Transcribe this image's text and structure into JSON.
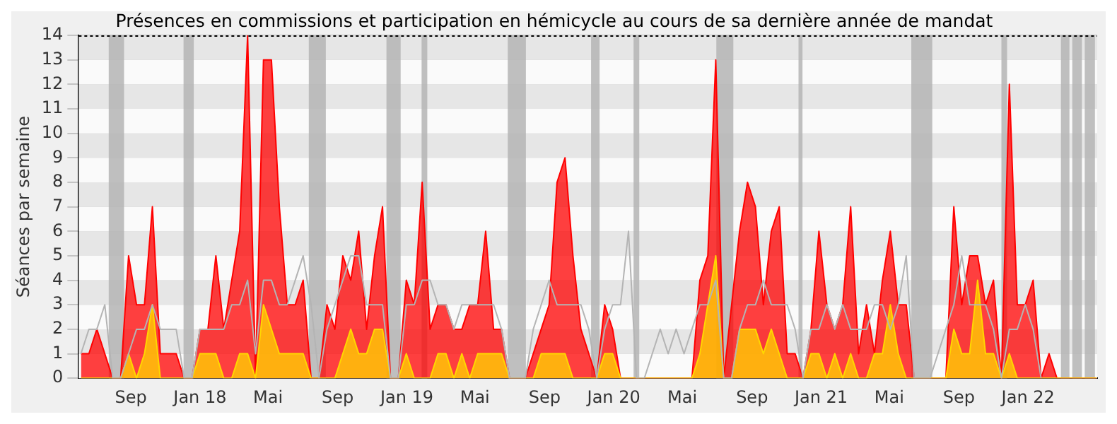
{
  "chart_data": {
    "type": "area",
    "title": "Présences en commissions et participation en hémicycle au cours de sa dernière année de mandat",
    "ylabel": "Séances par semaine",
    "x": [
      "2017-06-05",
      "2017-06-19",
      "2017-07-03",
      "2017-07-17",
      "2017-07-31",
      "2017-08-14",
      "2017-08-28",
      "2017-09-11",
      "2017-09-25",
      "2017-10-09",
      "2017-10-23",
      "2017-11-06",
      "2017-11-20",
      "2017-12-04",
      "2017-12-18",
      "2018-01-01",
      "2018-01-15",
      "2018-01-29",
      "2018-02-12",
      "2018-02-26",
      "2018-03-12",
      "2018-03-26",
      "2018-04-09",
      "2018-04-23",
      "2018-05-07",
      "2018-05-21",
      "2018-06-04",
      "2018-06-18",
      "2018-07-02",
      "2018-07-16",
      "2018-07-30",
      "2018-08-13",
      "2018-08-27",
      "2018-09-10",
      "2018-09-24",
      "2018-10-08",
      "2018-10-22",
      "2018-11-05",
      "2018-11-19",
      "2018-12-03",
      "2018-12-17",
      "2018-12-31",
      "2019-01-14",
      "2019-01-28",
      "2019-02-11",
      "2019-02-25",
      "2019-03-11",
      "2019-03-25",
      "2019-04-08",
      "2019-04-22",
      "2019-05-06",
      "2019-05-20",
      "2019-06-03",
      "2019-06-17",
      "2019-07-01",
      "2019-07-15",
      "2019-07-29",
      "2019-08-12",
      "2019-08-26",
      "2019-09-09",
      "2019-09-23",
      "2019-10-07",
      "2019-10-21",
      "2019-11-04",
      "2019-11-18",
      "2019-12-02",
      "2019-12-16",
      "2019-12-30",
      "2020-01-13",
      "2020-01-27",
      "2020-02-10",
      "2020-02-24",
      "2020-03-09",
      "2020-03-23",
      "2020-04-06",
      "2020-04-20",
      "2020-05-04",
      "2020-05-18",
      "2020-06-01",
      "2020-06-15",
      "2020-06-29",
      "2020-07-13",
      "2020-07-27",
      "2020-08-10",
      "2020-08-24",
      "2020-09-07",
      "2020-09-21",
      "2020-10-05",
      "2020-10-19",
      "2020-11-02",
      "2020-11-16",
      "2020-11-30",
      "2020-12-14",
      "2020-12-28",
      "2021-01-11",
      "2021-01-25",
      "2021-02-08",
      "2021-02-22",
      "2021-03-08",
      "2021-03-22",
      "2021-04-05",
      "2021-04-19",
      "2021-05-03",
      "2021-05-17",
      "2021-05-31",
      "2021-06-14",
      "2021-06-28",
      "2021-07-12",
      "2021-07-26",
      "2021-08-09",
      "2021-08-23",
      "2021-09-06",
      "2021-09-20",
      "2021-10-04",
      "2021-10-18",
      "2021-11-01",
      "2021-11-15",
      "2021-11-29",
      "2021-12-13",
      "2021-12-27",
      "2022-01-10",
      "2022-01-24",
      "2022-02-07",
      "2022-02-21",
      "2022-03-07",
      "2022-03-21",
      "2022-04-04",
      "2022-04-18",
      "2022-05-02"
    ],
    "series": [
      {
        "type": "line",
        "color": "#b4b4b4",
        "values": [
          1,
          2,
          2,
          3,
          0,
          0,
          1,
          2,
          2,
          3,
          2,
          2,
          2,
          0,
          0,
          2,
          2,
          2,
          2,
          3,
          3,
          4,
          1,
          4,
          4,
          3,
          3,
          4,
          5,
          3,
          0,
          2,
          3,
          4,
          5,
          5,
          3,
          3,
          3,
          0,
          0,
          3,
          3,
          4,
          4,
          3,
          3,
          2,
          3,
          3,
          3,
          3,
          3,
          2,
          0,
          0,
          0,
          2,
          3,
          4,
          3,
          3,
          3,
          3,
          2,
          0,
          2,
          3,
          3,
          6,
          0,
          0,
          1,
          2,
          1,
          2,
          1,
          2,
          3,
          3,
          4,
          0,
          0,
          2,
          3,
          3,
          4,
          3,
          3,
          3,
          2,
          0,
          2,
          2,
          3,
          2,
          3,
          2,
          2,
          2,
          3,
          3,
          2,
          3,
          5,
          0,
          0,
          0,
          1,
          2,
          3,
          5,
          3,
          3,
          3,
          2,
          0,
          2,
          2,
          3,
          2,
          0,
          null,
          null,
          null,
          null,
          null,
          null,
          null
        ]
      },
      {
        "color": "#ff0000",
        "values": [
          1,
          1,
          2,
          1,
          0,
          0,
          5,
          3,
          3,
          7,
          1,
          1,
          1,
          0,
          0,
          2,
          2,
          5,
          2,
          4,
          6,
          14,
          0,
          13,
          13,
          7,
          3,
          3,
          4,
          0,
          0,
          3,
          2,
          5,
          4,
          6,
          2,
          5,
          7,
          0,
          0,
          4,
          3,
          8,
          2,
          3,
          3,
          2,
          2,
          3,
          3,
          6,
          2,
          2,
          0,
          0,
          0,
          1,
          2,
          3,
          8,
          9,
          5,
          2,
          1,
          0,
          3,
          2,
          0,
          0,
          0,
          0,
          0,
          0,
          0,
          0,
          0,
          0,
          4,
          5,
          13,
          0,
          3,
          6,
          8,
          7,
          3,
          6,
          7,
          1,
          1,
          0,
          2,
          6,
          3,
          2,
          3,
          7,
          1,
          3,
          1,
          4,
          6,
          3,
          3,
          0,
          0,
          0,
          0,
          0,
          7,
          3,
          5,
          5,
          3,
          4,
          0,
          12,
          3,
          3,
          4,
          0,
          1,
          0,
          0,
          0,
          0,
          0,
          0
        ]
      },
      {
        "color": "#ffd700",
        "values": [
          0,
          0,
          0,
          0,
          0,
          0,
          1,
          0,
          1,
          3,
          0,
          0,
          0,
          0,
          0,
          1,
          1,
          1,
          0,
          0,
          1,
          1,
          0,
          3,
          2,
          1,
          1,
          1,
          1,
          0,
          0,
          0,
          0,
          1,
          2,
          1,
          1,
          2,
          2,
          0,
          0,
          1,
          0,
          0,
          0,
          1,
          1,
          0,
          1,
          0,
          1,
          1,
          1,
          1,
          0,
          0,
          0,
          0,
          1,
          1,
          1,
          1,
          0,
          0,
          0,
          0,
          1,
          1,
          0,
          0,
          0,
          0,
          0,
          0,
          0,
          0,
          0,
          0,
          1,
          3,
          5,
          0,
          0,
          2,
          2,
          2,
          1,
          2,
          1,
          0,
          0,
          0,
          1,
          1,
          0,
          1,
          0,
          1,
          0,
          0,
          1,
          1,
          3,
          1,
          0,
          0,
          0,
          0,
          0,
          0,
          2,
          1,
          1,
          4,
          1,
          1,
          0,
          1,
          0,
          0,
          0,
          0,
          0,
          0,
          0,
          0,
          0,
          0,
          0
        ]
      }
    ],
    "xlim": [
      "2017-06-01",
      "2022-05-03"
    ],
    "xticks": [
      {
        "value": "2017-09-01",
        "label": "Sep"
      },
      {
        "value": "2018-01-01",
        "label": "Jan 18"
      },
      {
        "value": "2018-05-01",
        "label": "Mai"
      },
      {
        "value": "2018-09-01",
        "label": "Sep"
      },
      {
        "value": "2019-01-01",
        "label": "Jan 19"
      },
      {
        "value": "2019-05-01",
        "label": "Mai"
      },
      {
        "value": "2019-09-01",
        "label": "Sep"
      },
      {
        "value": "2020-01-01",
        "label": "Jan 20"
      },
      {
        "value": "2020-05-01",
        "label": "Mai"
      },
      {
        "value": "2020-09-01",
        "label": "Sep"
      },
      {
        "value": "2021-01-01",
        "label": "Jan 21"
      },
      {
        "value": "2021-05-01",
        "label": "Mai"
      },
      {
        "value": "2021-09-01",
        "label": "Sep"
      },
      {
        "value": "2022-01-01",
        "label": "Jan 22"
      }
    ],
    "ylim": [
      0,
      14
    ],
    "yticks": [
      0,
      1,
      2,
      3,
      4,
      5,
      6,
      7,
      8,
      9,
      10,
      11,
      12,
      13,
      14
    ],
    "grid": "y",
    "legend": false,
    "bands": [
      {
        "axis": "x",
        "from": "2017-07-24",
        "to": "2017-08-20",
        "color": "#b4b4b4"
      },
      {
        "axis": "x",
        "from": "2017-12-03",
        "to": "2017-12-21",
        "color": "#b4b4b4"
      },
      {
        "axis": "x",
        "from": "2018-07-12",
        "to": "2018-08-11",
        "color": "#b4b4b4"
      },
      {
        "axis": "x",
        "from": "2018-11-26",
        "to": "2018-12-21",
        "color": "#b4b4b4"
      },
      {
        "axis": "x",
        "from": "2019-01-27",
        "to": "2019-02-06",
        "color": "#b4b4b4"
      },
      {
        "axis": "x",
        "from": "2019-06-28",
        "to": "2019-07-30",
        "color": "#b4b4b4"
      },
      {
        "axis": "x",
        "from": "2019-11-22",
        "to": "2019-12-07",
        "color": "#b4b4b4"
      },
      {
        "axis": "x",
        "from": "2020-02-05",
        "to": "2020-02-15",
        "color": "#b4b4b4"
      },
      {
        "axis": "x",
        "from": "2020-06-30",
        "to": "2020-07-30",
        "color": "#b4b4b4"
      },
      {
        "axis": "x",
        "from": "2020-11-22",
        "to": "2020-11-29",
        "color": "#b4b4b4"
      },
      {
        "axis": "x",
        "from": "2021-06-09",
        "to": "2021-07-16",
        "color": "#b4b4b4"
      },
      {
        "axis": "x",
        "from": "2021-11-15",
        "to": "2021-11-25",
        "color": "#b4b4b4"
      },
      {
        "axis": "x",
        "from": "2022-02-28",
        "to": "2022-03-15",
        "color": "#b4b4b4"
      },
      {
        "axis": "x",
        "from": "2022-03-20",
        "to": "2022-04-06",
        "color": "#b4b4b4"
      },
      {
        "axis": "x",
        "from": "2022-04-11",
        "to": "2022-04-29",
        "color": "#b4b4b4"
      }
    ]
  }
}
